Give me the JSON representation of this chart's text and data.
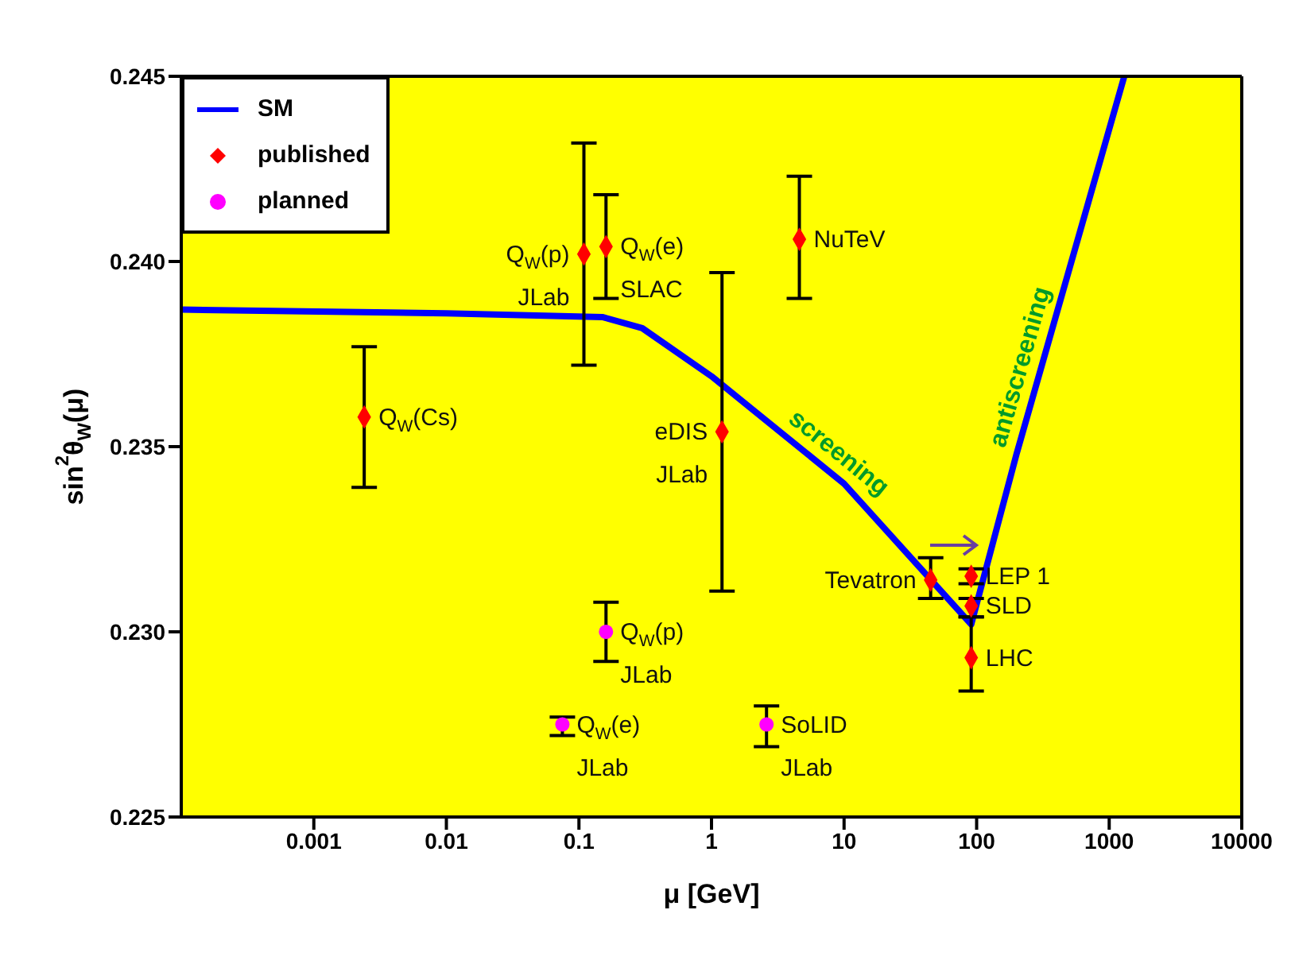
{
  "chart_data": {
    "type": "scatter",
    "xlabel": "μ [GeV]",
    "ylabel": "sin$^{2}$θ$_{W}$(μ)",
    "log": "x",
    "xlim": [
      0.0001,
      10000
    ],
    "xticks": [
      0.001,
      0.01,
      0.1,
      1,
      10,
      100,
      1000,
      10000
    ],
    "ylim": [
      0.225,
      0.245
    ],
    "yticks": [
      0.225,
      {
        "value": 0.23,
        "label": "0.230"
      },
      0.235,
      {
        "value": 0.24,
        "label": "0.240"
      },
      0.245
    ],
    "legend": "top left",
    "series": [
      {
        "name": "SM",
        "type": "line",
        "color": "#0000ff",
        "marker": "none",
        "x": [
          0.0001,
          0.01,
          0.15,
          0.3,
          1,
          10,
          91,
          200,
          1300
        ],
        "values": [
          0.2387,
          0.2386,
          0.2385,
          0.2382,
          0.2369,
          0.234,
          0.2302,
          0.2348,
          0.245
        ]
      },
      {
        "name": "published",
        "color": "#ff0000",
        "marker": "diamond",
        "x": [
          0.0024,
          0.109,
          0.16,
          1.2,
          4.6,
          45,
          91,
          91,
          91
        ],
        "values": [
          0.2358,
          0.2402,
          0.2404,
          0.2354,
          0.2406,
          0.2314,
          0.2315,
          0.2307,
          0.2293
        ],
        "errors": [
          [
            0.2339,
            0.2377
          ],
          [
            0.2372,
            0.2432
          ],
          [
            0.239,
            0.2418
          ],
          [
            0.2311,
            0.2397
          ],
          [
            0.239,
            0.2423
          ],
          [
            0.2309,
            0.232
          ],
          [
            0.2313,
            0.2317
          ],
          [
            0.2304,
            0.2309
          ],
          [
            0.2284,
            0.2304
          ]
        ]
      },
      {
        "name": "planned",
        "color": "#ff00ff",
        "marker": "circle",
        "x": [
          0.16,
          0.075,
          2.6
        ],
        "values": [
          0.23,
          0.2275,
          0.2275
        ],
        "errors": [
          [
            0.2292,
            0.2308
          ],
          [
            0.2272,
            0.2277
          ],
          [
            0.2269,
            0.228
          ]
        ]
      }
    ],
    "annotations": [
      {
        "text": "Q$_{W}$(Cs)",
        "x": 0.0024,
        "y": 0.2358
      },
      {
        "text": "Q$_{W}$(p)",
        "x": 0.109,
        "y": 0.2402
      },
      {
        "text": "JLab",
        "x": 0.109,
        "y": 0.2402
      },
      {
        "text": "Q$_{W}$(e)",
        "x": 0.16,
        "y": 0.2404
      },
      {
        "text": "SLAC",
        "x": 0.16,
        "y": 0.2404
      },
      {
        "text": "NuTeV",
        "x": 4.6,
        "y": 0.2406
      },
      {
        "text": "eDIS",
        "x": 1.2,
        "y": 0.2354
      },
      {
        "text": "JLab",
        "x": 1.2,
        "y": 0.2354
      },
      {
        "text": "screening",
        "x": 7.3,
        "y": 0.2344
      },
      {
        "text": "antiscreening",
        "x": 300,
        "y": 0.237
      },
      {
        "text": "Tevatron",
        "x": 45,
        "y": 0.2314
      },
      {
        "text": "LEP 1",
        "x": 91,
        "y": 0.2315
      },
      {
        "text": "SLD",
        "x": 91,
        "y": 0.2307
      },
      {
        "text": "LHC",
        "x": 91,
        "y": 0.2293
      },
      {
        "text": "Q$_{W}$(p)",
        "x": 0.16,
        "y": 0.23
      },
      {
        "text": "JLab",
        "x": 0.16,
        "y": 0.23
      },
      {
        "text": "Q$_{W}$(e)",
        "x": 0.075,
        "y": 0.2275
      },
      {
        "text": "JLab",
        "x": 0.075,
        "y": 0.2275
      },
      {
        "text": "SoLID",
        "x": 2.6,
        "y": 0.2275
      },
      {
        "text": "JLab",
        "x": 2.6,
        "y": 0.2275
      }
    ]
  }
}
